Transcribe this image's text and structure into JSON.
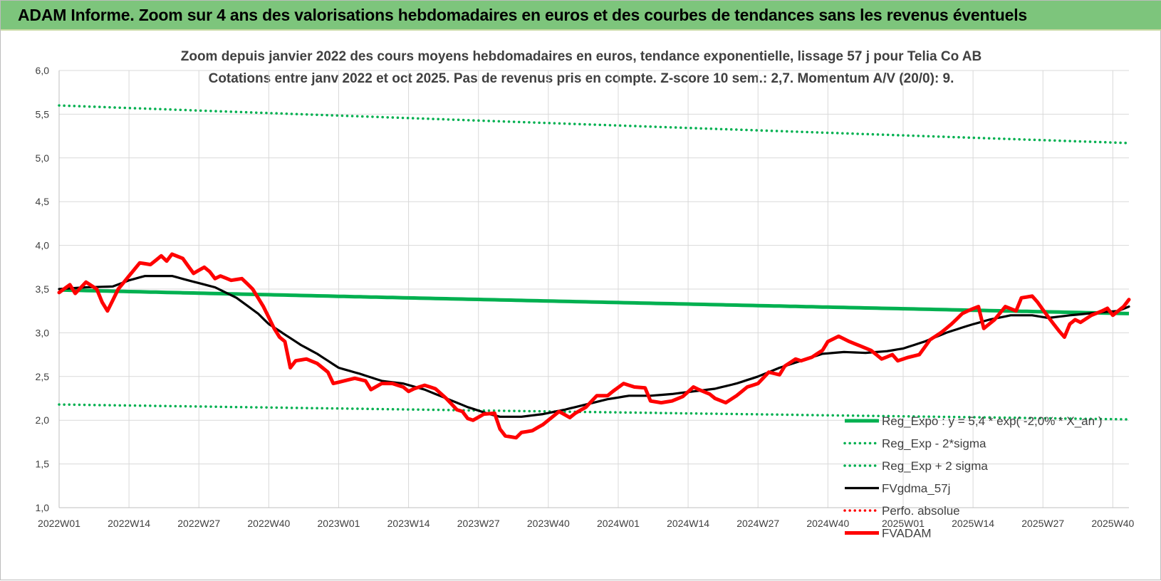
{
  "banner": {
    "title": "ADAM Informe. Zoom sur 4 ans des valorisations hebdomadaires en euros et des courbes de tendances sans les revenus éventuels"
  },
  "colors": {
    "green": "#00b050",
    "red": "#ff0000",
    "black": "#000000",
    "banner": "#7dc57c",
    "grid": "#d9d9d9",
    "text": "#404040"
  },
  "chart_data": {
    "type": "line",
    "title": "Zoom depuis janvier 2022 des cours moyens hebdomadaires en euros, tendance exponentielle, lissage 57 j pour Telia Co AB",
    "subtitle": "Cotations entre janv 2022 et oct 2025. Pas de revenus pris en compte. Z-score 10 sem.: 2,7. Momentum A/V (20/0): 9.",
    "xlabel": "",
    "ylabel": "",
    "ylim": [
      1.0,
      6.0
    ],
    "y_ticks": [
      "1,0",
      "1,5",
      "2,0",
      "2,5",
      "3,0",
      "3,5",
      "4,0",
      "4,5",
      "5,0",
      "5,5",
      "6,0"
    ],
    "x_ticks": [
      "2022W01",
      "2022W14",
      "2022W27",
      "2022W40",
      "2023W01",
      "2023W14",
      "2023W27",
      "2023W40",
      "2024W01",
      "2024W14",
      "2024W27",
      "2024W40",
      "2025W01",
      "2025W14",
      "2025W27",
      "2025W40"
    ],
    "x_tick_index": [
      0,
      13,
      26,
      39,
      52,
      65,
      78,
      91,
      104,
      117,
      130,
      143,
      157,
      170,
      183,
      196
    ],
    "n_weeks": 200,
    "grid": true,
    "legend_position": "bottom-right",
    "legend": [
      {
        "label": "Reg_Expo : y = 5,4 * exp( -2,0% *  X_an )",
        "style": "solid-thick",
        "color": "#00b050"
      },
      {
        "label": "Reg_Exp - 2*sigma",
        "style": "dotted",
        "color": "#00b050"
      },
      {
        "label": "Reg_Exp + 2 sigma",
        "style": "dotted",
        "color": "#00b050"
      },
      {
        "label": "FVgdma_57j",
        "style": "solid",
        "color": "#000000"
      },
      {
        "label": "Perfo. absolue",
        "style": "dotted",
        "color": "#ff0000"
      },
      {
        "label": "FVADAM",
        "style": "solid-thick",
        "color": "#ff0000"
      }
    ],
    "series": [
      {
        "name": "Reg_Expo",
        "kind": "exponential",
        "start_value": 3.49,
        "end_value": 3.22
      },
      {
        "name": "Reg_Exp - 2*sigma",
        "kind": "exponential",
        "start_value": 2.18,
        "end_value": 2.01
      },
      {
        "name": "Reg_Exp + 2 sigma",
        "kind": "exponential",
        "start_value": 5.6,
        "end_value": 5.17
      },
      {
        "name": "FVgdma_57j",
        "kind": "keypoints",
        "points": [
          [
            0,
            3.5
          ],
          [
            5,
            3.52
          ],
          [
            10,
            3.53
          ],
          [
            13,
            3.6
          ],
          [
            16,
            3.65
          ],
          [
            21,
            3.65
          ],
          [
            24,
            3.6
          ],
          [
            29,
            3.52
          ],
          [
            33,
            3.4
          ],
          [
            37,
            3.22
          ],
          [
            39,
            3.1
          ],
          [
            42,
            2.98
          ],
          [
            45,
            2.86
          ],
          [
            48,
            2.76
          ],
          [
            52,
            2.6
          ],
          [
            56,
            2.53
          ],
          [
            60,
            2.45
          ],
          [
            64,
            2.42
          ],
          [
            68,
            2.35
          ],
          [
            72,
            2.25
          ],
          [
            76,
            2.15
          ],
          [
            80,
            2.07
          ],
          [
            82,
            2.04
          ],
          [
            86,
            2.04
          ],
          [
            90,
            2.07
          ],
          [
            94,
            2.12
          ],
          [
            98,
            2.18
          ],
          [
            102,
            2.24
          ],
          [
            106,
            2.28
          ],
          [
            110,
            2.28
          ],
          [
            114,
            2.3
          ],
          [
            118,
            2.33
          ],
          [
            122,
            2.36
          ],
          [
            126,
            2.42
          ],
          [
            130,
            2.5
          ],
          [
            134,
            2.6
          ],
          [
            138,
            2.68
          ],
          [
            142,
            2.76
          ],
          [
            146,
            2.78
          ],
          [
            150,
            2.77
          ],
          [
            154,
            2.79
          ],
          [
            157,
            2.82
          ],
          [
            161,
            2.9
          ],
          [
            165,
            3.0
          ],
          [
            169,
            3.08
          ],
          [
            173,
            3.15
          ],
          [
            177,
            3.2
          ],
          [
            181,
            3.2
          ],
          [
            184,
            3.17
          ],
          [
            188,
            3.2
          ],
          [
            193,
            3.23
          ],
          [
            197,
            3.25
          ],
          [
            199,
            3.3
          ]
        ]
      },
      {
        "name": "FVADAM",
        "kind": "keypoints",
        "points": [
          [
            0,
            3.46
          ],
          [
            2,
            3.55
          ],
          [
            3,
            3.45
          ],
          [
            5,
            3.58
          ],
          [
            7,
            3.5
          ],
          [
            8,
            3.35
          ],
          [
            9,
            3.25
          ],
          [
            11,
            3.5
          ],
          [
            13,
            3.65
          ],
          [
            15,
            3.8
          ],
          [
            17,
            3.78
          ],
          [
            19,
            3.88
          ],
          [
            20,
            3.82
          ],
          [
            21,
            3.9
          ],
          [
            23,
            3.85
          ],
          [
            25,
            3.68
          ],
          [
            27,
            3.75
          ],
          [
            28,
            3.7
          ],
          [
            29,
            3.62
          ],
          [
            30,
            3.65
          ],
          [
            32,
            3.6
          ],
          [
            34,
            3.62
          ],
          [
            36,
            3.5
          ],
          [
            38,
            3.3
          ],
          [
            40,
            3.05
          ],
          [
            41,
            2.95
          ],
          [
            42,
            2.9
          ],
          [
            43,
            2.6
          ],
          [
            44,
            2.68
          ],
          [
            46,
            2.7
          ],
          [
            48,
            2.65
          ],
          [
            50,
            2.55
          ],
          [
            51,
            2.42
          ],
          [
            53,
            2.45
          ],
          [
            55,
            2.48
          ],
          [
            57,
            2.45
          ],
          [
            58,
            2.35
          ],
          [
            60,
            2.42
          ],
          [
            62,
            2.42
          ],
          [
            64,
            2.38
          ],
          [
            65,
            2.33
          ],
          [
            66,
            2.36
          ],
          [
            68,
            2.4
          ],
          [
            70,
            2.36
          ],
          [
            72,
            2.25
          ],
          [
            74,
            2.12
          ],
          [
            75,
            2.1
          ],
          [
            76,
            2.02
          ],
          [
            77,
            2.0
          ],
          [
            79,
            2.07
          ],
          [
            81,
            2.08
          ],
          [
            82,
            1.9
          ],
          [
            83,
            1.82
          ],
          [
            85,
            1.8
          ],
          [
            86,
            1.86
          ],
          [
            88,
            1.88
          ],
          [
            90,
            1.95
          ],
          [
            92,
            2.05
          ],
          [
            93,
            2.1
          ],
          [
            95,
            2.03
          ],
          [
            96,
            2.08
          ],
          [
            98,
            2.15
          ],
          [
            100,
            2.28
          ],
          [
            102,
            2.28
          ],
          [
            103,
            2.33
          ],
          [
            105,
            2.42
          ],
          [
            107,
            2.38
          ],
          [
            109,
            2.37
          ],
          [
            110,
            2.22
          ],
          [
            112,
            2.2
          ],
          [
            114,
            2.22
          ],
          [
            116,
            2.27
          ],
          [
            118,
            2.38
          ],
          [
            119,
            2.35
          ],
          [
            121,
            2.3
          ],
          [
            122,
            2.25
          ],
          [
            124,
            2.2
          ],
          [
            126,
            2.28
          ],
          [
            128,
            2.38
          ],
          [
            130,
            2.42
          ],
          [
            132,
            2.55
          ],
          [
            134,
            2.52
          ],
          [
            135,
            2.62
          ],
          [
            137,
            2.7
          ],
          [
            138,
            2.68
          ],
          [
            140,
            2.72
          ],
          [
            142,
            2.8
          ],
          [
            143,
            2.9
          ],
          [
            145,
            2.96
          ],
          [
            147,
            2.9
          ],
          [
            149,
            2.85
          ],
          [
            151,
            2.8
          ],
          [
            153,
            2.7
          ],
          [
            155,
            2.75
          ],
          [
            156,
            2.68
          ],
          [
            158,
            2.72
          ],
          [
            160,
            2.75
          ],
          [
            162,
            2.92
          ],
          [
            164,
            3.0
          ],
          [
            166,
            3.1
          ],
          [
            168,
            3.22
          ],
          [
            169,
            3.25
          ],
          [
            171,
            3.3
          ],
          [
            172,
            3.05
          ],
          [
            174,
            3.15
          ],
          [
            176,
            3.3
          ],
          [
            178,
            3.25
          ],
          [
            179,
            3.4
          ],
          [
            181,
            3.42
          ],
          [
            182,
            3.35
          ],
          [
            184,
            3.18
          ],
          [
            186,
            3.02
          ],
          [
            187,
            2.95
          ],
          [
            188,
            3.1
          ],
          [
            189,
            3.15
          ],
          [
            190,
            3.12
          ],
          [
            192,
            3.2
          ],
          [
            194,
            3.25
          ],
          [
            195,
            3.28
          ],
          [
            196,
            3.2
          ],
          [
            197,
            3.25
          ],
          [
            198,
            3.3
          ],
          [
            199,
            3.38
          ]
        ]
      }
    ]
  }
}
